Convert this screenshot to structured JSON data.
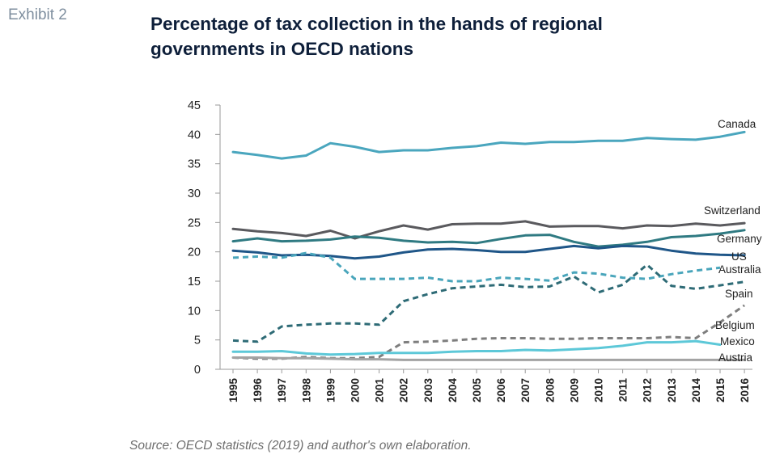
{
  "exhibit_label": "Exhibit 2",
  "title": "Percentage of tax collection in the hands of regional governments in OECD nations",
  "source": "Source: OECD statistics (2019) and author's own elaboration.",
  "chart_data": {
    "type": "line",
    "title": "Percentage of tax collection in the hands of regional governments in OECD nations",
    "xlabel": "",
    "ylabel": "",
    "ylim": [
      0,
      45
    ],
    "yticks": [
      0,
      5,
      10,
      15,
      20,
      25,
      30,
      35,
      40,
      45
    ],
    "grid": false,
    "legend": "labels at line ends",
    "x": [
      "1995",
      "1996",
      "1997",
      "1998",
      "1999",
      "2000",
      "2001",
      "2002",
      "2003",
      "2004",
      "2005",
      "2006",
      "2007",
      "2008",
      "2009",
      "2010",
      "2011",
      "2012",
      "2013",
      "2014",
      "2015",
      "2016"
    ],
    "series": [
      {
        "name": "Canada",
        "color": "#4aa6be",
        "dash": "solid",
        "values": [
          37.0,
          36.5,
          35.9,
          36.4,
          38.5,
          37.9,
          37.0,
          37.3,
          37.3,
          37.7,
          38.0,
          38.6,
          38.4,
          38.7,
          38.7,
          38.9,
          38.9,
          39.4,
          39.2,
          39.1,
          39.6,
          40.4
        ]
      },
      {
        "name": "Switzerland",
        "color": "#5a5a5e",
        "dash": "solid",
        "values": [
          23.9,
          23.5,
          23.2,
          22.7,
          23.6,
          22.3,
          23.5,
          24.5,
          23.8,
          24.7,
          24.8,
          24.8,
          25.2,
          24.3,
          24.4,
          24.4,
          24.0,
          24.5,
          24.4,
          24.8,
          24.5,
          24.9
        ]
      },
      {
        "name": "Germany",
        "color": "#2f7a82",
        "dash": "solid",
        "values": [
          21.8,
          22.3,
          21.8,
          21.9,
          22.1,
          22.6,
          22.4,
          21.9,
          21.6,
          21.7,
          21.5,
          22.2,
          22.8,
          22.9,
          21.7,
          20.9,
          21.2,
          21.7,
          22.5,
          22.7,
          23.1,
          23.7
        ]
      },
      {
        "name": "US",
        "color": "#1f5688",
        "dash": "solid",
        "values": [
          20.2,
          19.9,
          19.4,
          19.5,
          19.3,
          18.9,
          19.2,
          19.9,
          20.4,
          20.5,
          20.3,
          20.0,
          20.0,
          20.5,
          21.0,
          20.6,
          21.0,
          20.9,
          20.2,
          19.7,
          19.5,
          19.4
        ]
      },
      {
        "name": "Australia",
        "color": "#49a5bb",
        "dash": "dashed",
        "values": [
          19.0,
          19.2,
          19.0,
          19.8,
          19.0,
          15.4,
          15.4,
          15.4,
          15.6,
          15.0,
          15.0,
          15.6,
          15.4,
          15.1,
          16.5,
          16.3,
          15.6,
          15.4,
          16.2,
          16.8,
          17.3,
          null
        ]
      },
      {
        "name": "Spain",
        "color": "#2e6b76",
        "dash": "dashed",
        "values": [
          4.9,
          4.7,
          7.3,
          7.6,
          7.8,
          7.8,
          7.6,
          11.6,
          12.8,
          13.8,
          14.1,
          14.4,
          14.0,
          14.1,
          15.8,
          13.1,
          14.4,
          17.8,
          14.2,
          13.7,
          14.3,
          14.9
        ]
      },
      {
        "name": "Belgium",
        "color": "#7e7e7e",
        "dash": "dashed",
        "values": [
          2.0,
          1.8,
          1.8,
          2.1,
          1.9,
          1.9,
          2.1,
          4.6,
          4.7,
          4.9,
          5.2,
          5.3,
          5.3,
          5.2,
          5.2,
          5.3,
          5.3,
          5.3,
          5.5,
          5.3,
          8.0,
          10.9
        ]
      },
      {
        "name": "Mexico",
        "color": "#5dc8d8",
        "dash": "solid",
        "values": [
          3.0,
          3.0,
          3.1,
          2.7,
          2.5,
          2.6,
          2.8,
          2.8,
          2.8,
          3.0,
          3.1,
          3.1,
          3.3,
          3.2,
          3.4,
          3.6,
          4.0,
          4.6,
          4.6,
          4.8,
          4.2,
          null
        ]
      },
      {
        "name": "Austria",
        "color": "#a3a3a3",
        "dash": "solid",
        "values": [
          2.0,
          2.0,
          1.9,
          1.9,
          1.8,
          1.7,
          1.7,
          1.6,
          1.6,
          1.6,
          1.6,
          1.6,
          1.6,
          1.6,
          1.6,
          1.6,
          1.6,
          1.6,
          1.6,
          1.6,
          1.6,
          1.6
        ]
      }
    ]
  }
}
